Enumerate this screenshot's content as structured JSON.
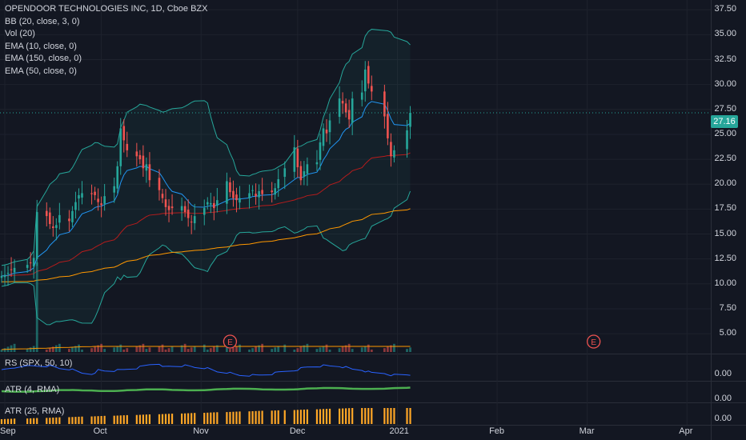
{
  "legend": {
    "symbol": "OPENDOOR TECHNOLOGIES INC, 1D, Cboe BZX",
    "indicators": [
      "BB (20, close, 3, 0)",
      "Vol (20)",
      "EMA (10, close, 0)",
      "EMA (150, close, 0)",
      "EMA (50, close, 0)"
    ]
  },
  "price_axis": {
    "ticks": [
      "37.50",
      "35.00",
      "32.50",
      "30.00",
      "27.50",
      "25.00",
      "22.50",
      "20.00",
      "17.50",
      "15.00",
      "12.50",
      "10.00",
      "7.50",
      "5.00"
    ],
    "last_price": "27.16"
  },
  "time_axis": {
    "ticks": [
      "Sep",
      "Oct",
      "Nov",
      "Dec",
      "2021",
      "Feb",
      "Mar",
      "Apr"
    ]
  },
  "earnings_marker": "E",
  "panes": {
    "rs": {
      "label": "RS (SPX, 50, 10)",
      "axis_value": "0.00"
    },
    "atr4": {
      "label": "ATR (4, RMA)",
      "axis_value": "0.00"
    },
    "atr25": {
      "label": "ATR (25, RMA)",
      "axis_value": "0.00"
    }
  },
  "colors": {
    "background": "#131722",
    "up": "#26a69a",
    "down": "#ef5350",
    "bb_band": "#26a69a",
    "ema10": "#2196f3",
    "ema50": "#ff9800",
    "ema150": "#b71c1c",
    "rs_line": "#2962ff",
    "atr4_line": "#4caf50",
    "atr25_bars": "#ffa726",
    "last_price_line": "#26a69a"
  },
  "chart_data": {
    "type": "candlestick",
    "x": [
      "2020-08-31",
      "2020-09-01",
      "2020-09-02",
      "2020-09-03",
      "2020-09-04",
      "2020-09-08",
      "2020-09-09",
      "2020-09-10",
      "2020-09-11",
      "2020-09-14",
      "2020-09-15",
      "2020-09-16",
      "2020-09-17",
      "2020-09-18",
      "2020-09-21",
      "2020-09-22",
      "2020-09-23",
      "2020-09-24",
      "2020-09-25",
      "2020-09-28",
      "2020-09-29",
      "2020-09-30",
      "2020-10-01",
      "2020-10-02",
      "2020-10-05",
      "2020-10-06",
      "2020-10-07",
      "2020-10-08",
      "2020-10-09",
      "2020-10-12",
      "2020-10-13",
      "2020-10-14",
      "2020-10-15",
      "2020-10-16",
      "2020-10-19",
      "2020-10-20",
      "2020-10-21",
      "2020-10-22",
      "2020-10-23",
      "2020-10-26",
      "2020-10-27",
      "2020-10-28",
      "2020-10-29",
      "2020-10-30",
      "2020-11-02",
      "2020-11-03",
      "2020-11-04",
      "2020-11-05",
      "2020-11-06",
      "2020-11-09",
      "2020-11-10",
      "2020-11-11",
      "2020-11-12",
      "2020-11-13",
      "2020-11-16",
      "2020-11-17",
      "2020-11-18",
      "2020-11-19",
      "2020-11-20",
      "2020-11-23",
      "2020-11-24",
      "2020-11-25",
      "2020-11-27",
      "2020-11-30",
      "2020-12-01",
      "2020-12-02",
      "2020-12-03",
      "2020-12-04",
      "2020-12-07",
      "2020-12-08",
      "2020-12-09",
      "2020-12-10",
      "2020-12-11",
      "2020-12-14",
      "2020-12-15",
      "2020-12-16",
      "2020-12-17",
      "2020-12-18",
      "2020-12-21",
      "2020-12-22",
      "2020-12-23",
      "2020-12-24",
      "2020-12-28",
      "2020-12-29",
      "2020-12-30",
      "2020-12-31",
      "2021-01-04",
      "2021-01-05"
    ],
    "close": [
      10.8,
      10.9,
      11.1,
      11.4,
      11.6,
      11.9,
      12.1,
      12.6,
      17.2,
      16.8,
      16.0,
      15.6,
      15.9,
      16.9,
      16.3,
      17.3,
      18.2,
      18.9,
      19.1,
      19.0,
      18.9,
      18.2,
      17.9,
      18.8,
      19.8,
      21.8,
      25.6,
      24.4,
      23.4,
      22.8,
      22.5,
      21.6,
      22.0,
      20.4,
      19.4,
      18.6,
      17.7,
      17.4,
      17.6,
      17.8,
      17.2,
      16.6,
      16.2,
      16.8,
      17.6,
      18.2,
      18.1,
      17.6,
      18.4,
      20.3,
      19.2,
      18.6,
      18.4,
      18.6,
      19.1,
      19.4,
      18.8,
      19.3,
      19.0,
      19.2,
      19.6,
      20.5,
      21.6,
      23.7,
      21.7,
      20.4,
      21.3,
      22.0,
      22.2,
      24.2,
      25.6,
      25.1,
      26.4,
      28.6,
      28.1,
      27.2,
      26.5,
      28.6,
      29.2,
      31.5,
      30.1,
      29.3,
      26.8,
      24.6,
      22.8,
      23.4,
      25.4,
      27.16
    ],
    "ylim": [
      3.0,
      38.0
    ],
    "series": [
      {
        "name": "BB (20, close, 3, 0)"
      },
      {
        "name": "EMA (10, close, 0)"
      },
      {
        "name": "EMA (150, close, 0)"
      },
      {
        "name": "EMA (50, close, 0)"
      }
    ],
    "volume_spike_date": "2020-09-11",
    "earnings_dates": [
      "2020-11-10",
      "2021-03-03"
    ]
  }
}
